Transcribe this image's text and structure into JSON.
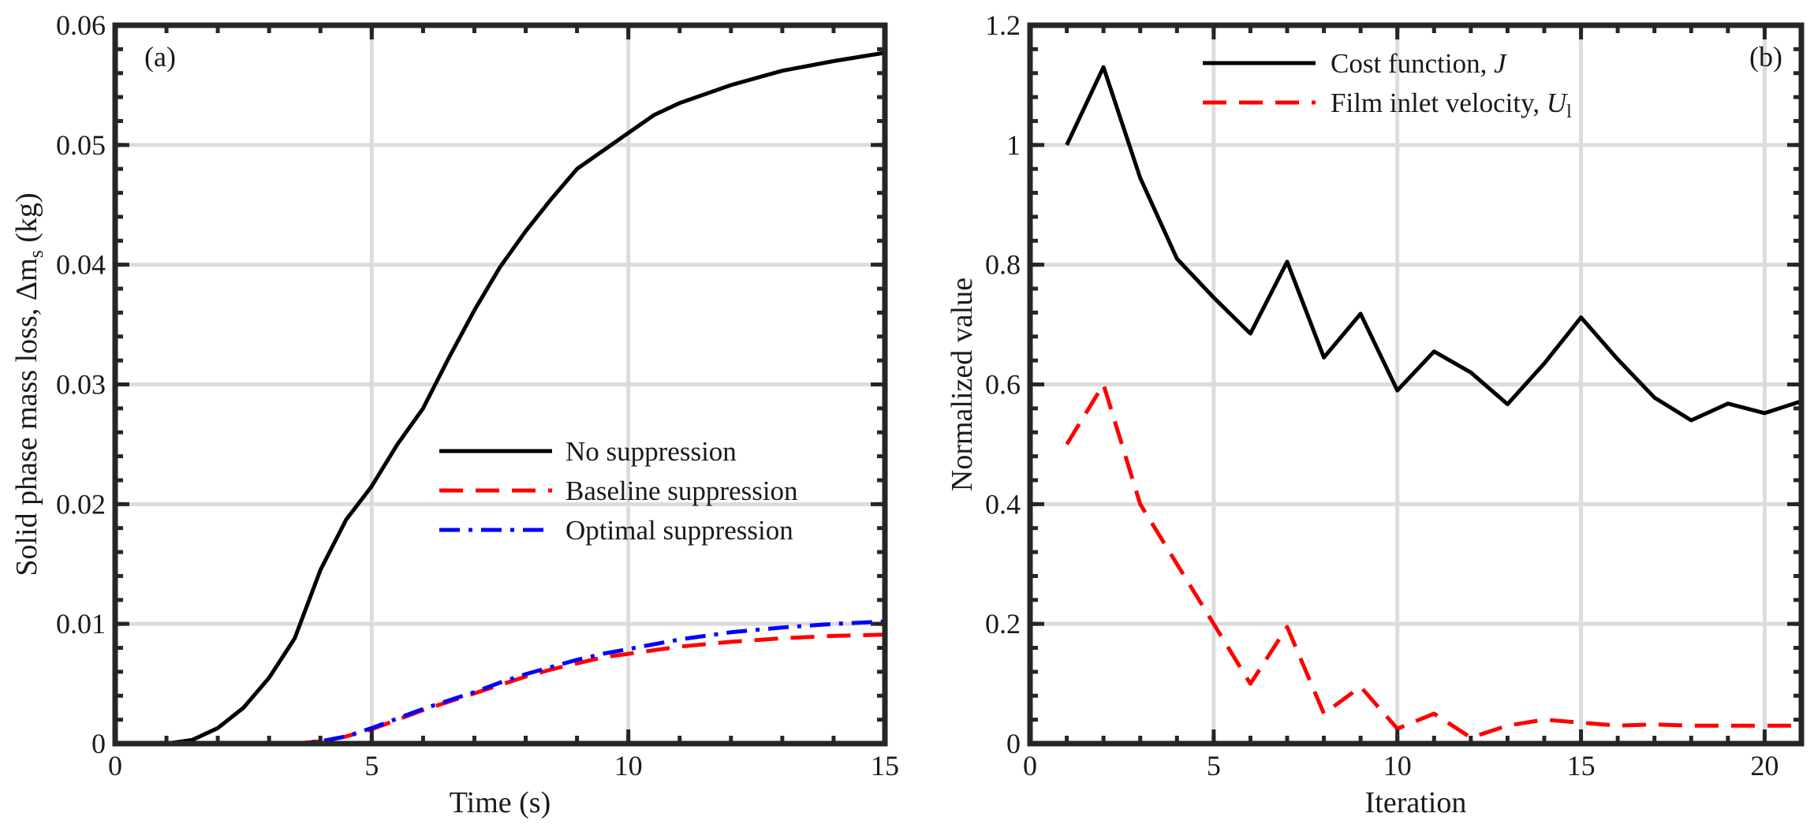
{
  "chart_data": [
    {
      "type": "line",
      "panel_label": "(a)",
      "xlabel": "Time (s)",
      "ylabel": "Solid phase mass loss, Δm",
      "ylabel_sub": "s",
      "ylabel_unit": " (kg)",
      "xlim": [
        0,
        15
      ],
      "ylim": [
        0,
        0.06
      ],
      "xticks": [
        0,
        5,
        10,
        15
      ],
      "xtick_labels": [
        "0",
        "5",
        "10",
        "15"
      ],
      "yticks": [
        0,
        0.01,
        0.02,
        0.03,
        0.04,
        0.05,
        0.06
      ],
      "ytick_labels": [
        "0",
        "0.01",
        "0.02",
        "0.03",
        "0.04",
        "0.05",
        "0.06"
      ],
      "grid": true,
      "legend_position": "center-right",
      "series": [
        {
          "name": "No suppression",
          "color": "#000000",
          "dash": "solid",
          "x": [
            0,
            1,
            1.5,
            2,
            2.5,
            3,
            3.5,
            4,
            4.5,
            5,
            5.5,
            6,
            6.5,
            7,
            7.5,
            8,
            8.5,
            9,
            9.5,
            10,
            10.5,
            11,
            12,
            13,
            14,
            15
          ],
          "y": [
            0,
            0,
            0.0003,
            0.0013,
            0.003,
            0.0055,
            0.0088,
            0.0145,
            0.0187,
            0.0215,
            0.025,
            0.028,
            0.0322,
            0.0362,
            0.0398,
            0.0428,
            0.0455,
            0.048,
            0.0495,
            0.051,
            0.0525,
            0.0535,
            0.055,
            0.0562,
            0.057,
            0.0577
          ]
        },
        {
          "name": "Baseline suppression",
          "color": "#ff0000",
          "dash": "dashed",
          "x": [
            0,
            3.5,
            4,
            4.5,
            5,
            5.5,
            6,
            6.5,
            7,
            7.5,
            8,
            8.5,
            9,
            9.5,
            10,
            11,
            12,
            13,
            14,
            15
          ],
          "y": [
            0,
            0,
            0.0002,
            0.0006,
            0.0012,
            0.002,
            0.0028,
            0.0035,
            0.0042,
            0.0049,
            0.0056,
            0.0062,
            0.0067,
            0.0072,
            0.0075,
            0.0081,
            0.0085,
            0.0088,
            0.009,
            0.0091
          ]
        },
        {
          "name": "Optimal suppression",
          "color": "#0000ff",
          "dash": "dashdot",
          "x": [
            0,
            3.5,
            4,
            4.5,
            5,
            5.5,
            6,
            6.5,
            7,
            7.5,
            8,
            8.5,
            9,
            9.5,
            10,
            11,
            12,
            13,
            14,
            15
          ],
          "y": [
            0,
            0,
            0.0002,
            0.0006,
            0.0013,
            0.0021,
            0.0029,
            0.0036,
            0.0043,
            0.0051,
            0.0058,
            0.0064,
            0.007,
            0.0075,
            0.0079,
            0.0087,
            0.0093,
            0.0097,
            0.01,
            0.0102
          ]
        }
      ]
    },
    {
      "type": "line",
      "panel_label": "(b)",
      "xlabel": "Iteration",
      "ylabel": "Normalized value",
      "xlim": [
        0,
        21
      ],
      "ylim": [
        0,
        1.2
      ],
      "xticks": [
        0,
        5,
        10,
        15,
        20
      ],
      "xtick_labels": [
        "0",
        "5",
        "10",
        "15",
        "20"
      ],
      "yticks": [
        0,
        0.2,
        0.4,
        0.6,
        0.8,
        1.0,
        1.2
      ],
      "ytick_labels": [
        "0",
        "0.2",
        "0.4",
        "0.6",
        "0.8",
        "1",
        "1.2"
      ],
      "grid": true,
      "legend_position": "top-center",
      "series": [
        {
          "name": "Cost function, ",
          "name_math": "J",
          "name_sub": "",
          "color": "#000000",
          "dash": "solid",
          "x": [
            1,
            2,
            3,
            4,
            5,
            6,
            7,
            8,
            9,
            10,
            11,
            12,
            13,
            14,
            15,
            16,
            17,
            18,
            19,
            20,
            21
          ],
          "y": [
            1.0,
            1.13,
            0.945,
            0.81,
            0.745,
            0.685,
            0.805,
            0.645,
            0.718,
            0.59,
            0.655,
            0.62,
            0.567,
            0.635,
            0.712,
            0.642,
            0.578,
            0.54,
            0.568,
            0.552,
            0.572
          ]
        },
        {
          "name": "Film inlet velocity, ",
          "name_math": "U",
          "name_sub": "l",
          "color": "#ff0000",
          "dash": "dashed",
          "x": [
            1,
            2,
            3,
            4,
            5,
            6,
            7,
            8,
            9,
            10,
            11,
            12,
            13,
            14,
            15,
            16,
            17,
            18,
            19,
            20,
            21
          ],
          "y": [
            0.5,
            0.6,
            0.4,
            0.3,
            0.2,
            0.1,
            0.195,
            0.05,
            0.095,
            0.025,
            0.05,
            0.01,
            0.03,
            0.04,
            0.035,
            0.03,
            0.032,
            0.03,
            0.03,
            0.03,
            0.03
          ]
        }
      ]
    }
  ]
}
